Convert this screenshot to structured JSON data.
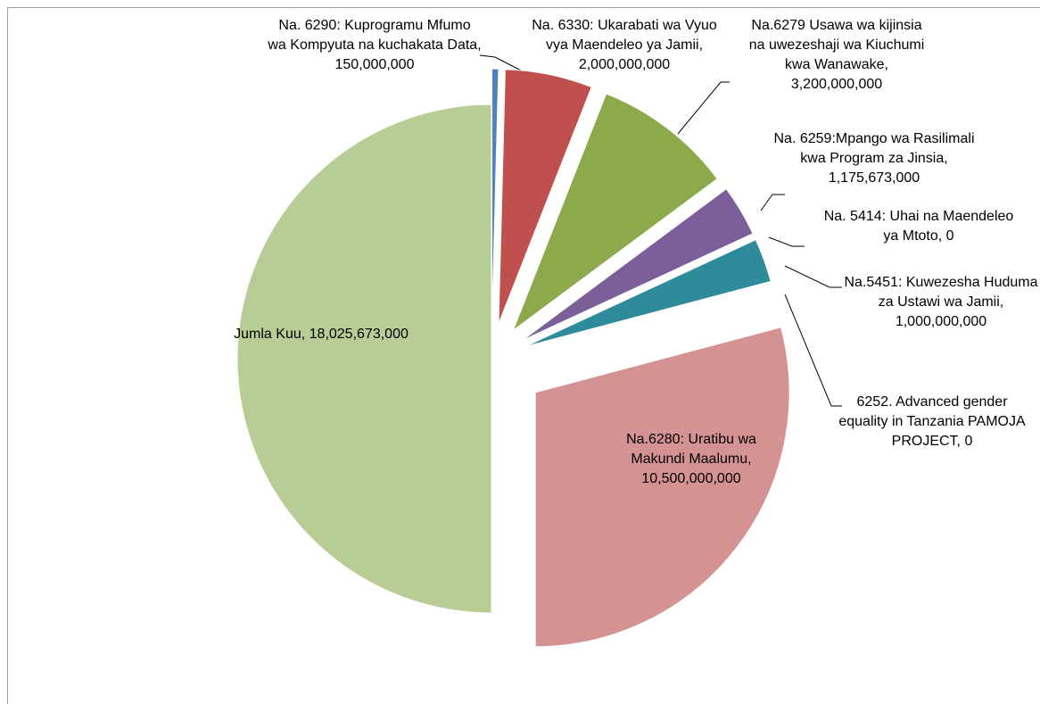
{
  "chart_data": {
    "type": "pie",
    "categories": [
      "Na. 6290: Kuprogramu Mfumo wa Kompyuta na kuchakata Data,",
      "Na. 6330: Ukarabati wa Vyuo vya Maendeleo ya Jamii,",
      "Na.6279 Usawa wa kijinsia na uwezeshaji wa Kiuchumi kwa Wanawake,",
      "Na. 6259:Mpango wa Rasilimali kwa Program za Jinsia,",
      "Na. 5414: Uhai na Maendeleo ya Mtoto,",
      "Na.5451: Kuwezesha Huduma za Ustawi wa Jamii,",
      "6252. Advanced gender equality in Tanzania PAMOJA PROJECT,",
      "Na.6280: Uratibu wa Makundi Maalumu,",
      "Jumla Kuu,"
    ],
    "values": [
      150000000,
      2000000000,
      3200000000,
      1175673000,
      0,
      1000000000,
      0,
      10500000000,
      18025673000
    ],
    "value_labels": [
      "150,000,000",
      "2,000,000,000",
      "3,200,000,000",
      "1,175,673,000",
      "0",
      "1,000,000,000",
      "0",
      "10,500,000,000",
      "18,025,673,000"
    ],
    "colors": [
      "#4f81bd",
      "#c0504d",
      "#8caa4c",
      "#7a5f99",
      "#e58a3f",
      "#2e8b9a",
      "#4bacc6",
      "#d49392",
      "#b8cd96"
    ]
  }
}
